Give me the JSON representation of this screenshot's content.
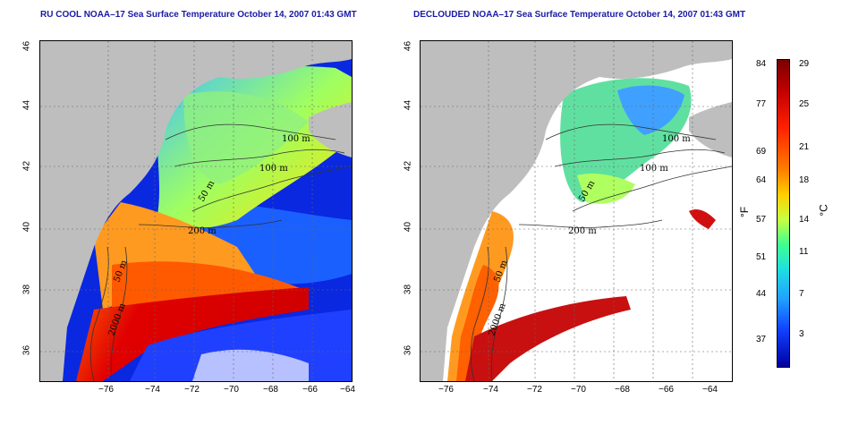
{
  "left_panel": {
    "title": "RU COOL NOAA–17 Sea Surface Temperature October 14, 2007 01:43 GMT",
    "contour_labels": [
      "100 m",
      "100 m",
      "50 m",
      "200 m",
      "50 m",
      "2000 m"
    ]
  },
  "right_panel": {
    "title": "DECLOUDED NOAA–17 Sea Surface Temperature October 14, 2007 01:43 GMT",
    "contour_labels": [
      "100 m",
      "100 m",
      "50 m",
      "200 m",
      "50 m",
      "2000 m"
    ]
  },
  "axes": {
    "x_ticks": [
      "−76",
      "−74",
      "−72",
      "−70",
      "−68",
      "−66",
      "−64"
    ],
    "y_ticks": [
      "46",
      "44",
      "42",
      "40",
      "38",
      "36"
    ]
  },
  "colorbar": {
    "fahrenheit_ticks": [
      "84",
      "77",
      "69",
      "64",
      "57",
      "51",
      "44",
      "37"
    ],
    "celsius_ticks": [
      "29",
      "25",
      "21",
      "18",
      "14",
      "11",
      "7",
      "3"
    ],
    "fahrenheit_unit": "°F",
    "celsius_unit": "°C"
  },
  "colors": {
    "land": "#bebebe",
    "title": "#1a1aa6",
    "warm": "#c00000",
    "cold": "#0000c8"
  }
}
